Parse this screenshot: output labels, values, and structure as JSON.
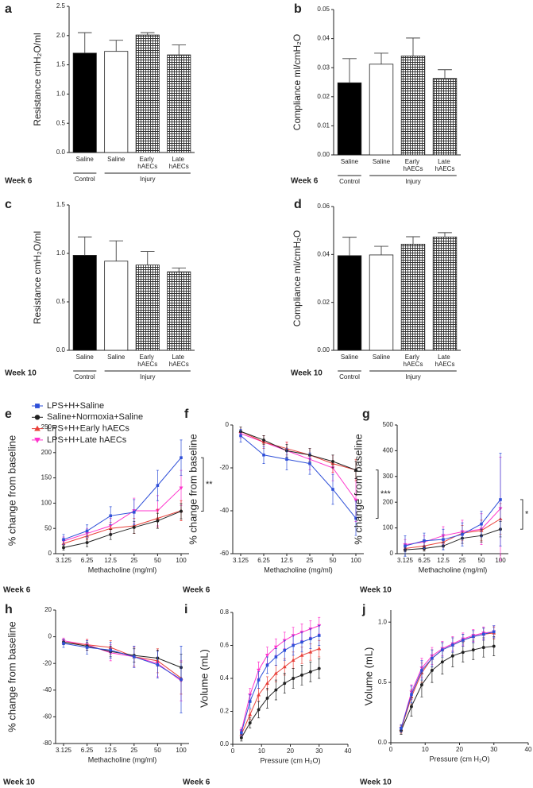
{
  "chart_data": [
    {
      "type": "bar",
      "label": "a",
      "note": "Week 6",
      "y_label": "Resistance cmH₂O/ml",
      "categories": [
        "Saline",
        "Saline",
        "Early hAECs",
        "Late hAECs"
      ],
      "group_labels": [
        "Control",
        "Injury"
      ],
      "values": [
        1.7,
        1.73,
        2.01,
        1.67
      ],
      "errors": [
        0.35,
        0.19,
        0.04,
        0.17
      ],
      "fills": [
        "#000000",
        "#ffffff",
        "crosshatch",
        "crosshatch"
      ],
      "ylim": [
        0,
        2.5
      ],
      "yticks": [
        {
          "value": 0,
          "label": "0.0"
        },
        0.5,
        {
          "value": 1,
          "label": "1.0"
        },
        1.5,
        {
          "value": 2,
          "label": "2.0"
        },
        2.5
      ]
    },
    {
      "type": "bar",
      "label": "b",
      "note": "Week 6",
      "y_label": "Compliance ml/cmH₂O",
      "categories": [
        "Saline",
        "Saline",
        "Early hAECs",
        "Late hAECs"
      ],
      "group_labels": [
        "Control",
        "Injury"
      ],
      "values": [
        0.0248,
        0.0312,
        0.034,
        0.0263
      ],
      "errors": [
        0.0083,
        0.0038,
        0.0062,
        0.003
      ],
      "fills": [
        "#000000",
        "#ffffff",
        "crosshatch",
        "crosshatch"
      ],
      "ylim": [
        0,
        0.05
      ],
      "yticks": [
        {
          "value": 0,
          "label": "0.00"
        },
        0.01,
        0.02,
        0.03,
        0.04,
        0.05
      ]
    },
    {
      "type": "bar",
      "label": "c",
      "note": "Week 10",
      "y_label": "Resistance cmH₂O/ml",
      "categories": [
        "Saline",
        "Saline",
        "Early hAECs",
        "Late hAECs"
      ],
      "group_labels": [
        "Control",
        "Injury"
      ],
      "values": [
        0.98,
        0.92,
        0.88,
        0.81
      ],
      "errors": [
        0.19,
        0.21,
        0.14,
        0.04
      ],
      "fills": [
        "#000000",
        "#ffffff",
        "crosshatch",
        "crosshatch"
      ],
      "ylim": [
        0,
        1.5
      ],
      "yticks": [
        {
          "value": 0,
          "label": "0.0"
        },
        0.5,
        {
          "value": 1,
          "label": "1.0"
        },
        1.5
      ]
    },
    {
      "type": "bar",
      "label": "d",
      "note": "Week 10",
      "y_label": "Compliance ml/cmH₂O",
      "categories": [
        "Saline",
        "Saline",
        "Early hAECs",
        "Late hAECs"
      ],
      "group_labels": [
        "Control",
        "Injury"
      ],
      "values": [
        0.0395,
        0.0398,
        0.0443,
        0.0473
      ],
      "errors": [
        0.0077,
        0.0036,
        0.0031,
        0.0018
      ],
      "fills": [
        "#000000",
        "#ffffff",
        "crosshatch",
        "crosshatch"
      ],
      "ylim": [
        0,
        0.06
      ],
      "yticks": [
        {
          "value": 0,
          "label": "0.00"
        },
        0.02,
        0.04,
        0.06
      ]
    },
    {
      "type": "line",
      "label": "e",
      "note": "Week 6",
      "y_label": "% change from baseline",
      "x_label": "Methacholine (mg/ml)",
      "categories": [
        "3.125",
        "6.25",
        "12.5",
        "25",
        "50",
        "100"
      ],
      "legend": true,
      "annotation": "**",
      "ylim": [
        0,
        250
      ],
      "yticks": [
        0,
        50,
        100,
        150,
        200,
        250
      ],
      "series": [
        {
          "name": "LPS+H+Late hAECs",
          "color": "#ff33cc",
          "marker": "triangle-down",
          "values": [
            25,
            40,
            55,
            85,
            85,
            130
          ],
          "errors": [
            8,
            10,
            15,
            25,
            30,
            35
          ]
        },
        {
          "name": "LPS+H+Early hAECs",
          "color": "#e8403a",
          "marker": "triangle",
          "values": [
            20,
            35,
            50,
            55,
            70,
            85
          ],
          "errors": [
            6,
            8,
            12,
            15,
            18,
            20
          ]
        },
        {
          "name": "Saline+Normoxia+Saline",
          "color": "#222222",
          "marker": "circle",
          "values": [
            12,
            22,
            38,
            52,
            65,
            84
          ],
          "errors": [
            5,
            8,
            10,
            12,
            15,
            15
          ]
        },
        {
          "name": "LPS+H+Saline",
          "color": "#2e4fd8",
          "marker": "square",
          "values": [
            28,
            45,
            75,
            82,
            135,
            190
          ],
          "errors": [
            10,
            12,
            18,
            25,
            30,
            35
          ]
        }
      ]
    },
    {
      "type": "line",
      "label": "f",
      "note": "Week 6",
      "y_label": "% change from baseline",
      "x_label": "Methacholine (mg/ml)",
      "categories": [
        "3.125",
        "6.25",
        "12.5",
        "25",
        "50",
        "100"
      ],
      "annotation": "***",
      "ylim": [
        -60,
        0
      ],
      "yticks": [
        -60,
        -40,
        -20,
        0
      ],
      "series": [
        {
          "color": "#ff33cc",
          "marker": "triangle-down",
          "values": [
            -4,
            -8,
            -12,
            -16,
            -20,
            -35
          ],
          "errors": [
            2,
            3,
            4,
            5,
            6,
            10
          ]
        },
        {
          "color": "#e8403a",
          "marker": "triangle",
          "values": [
            -3,
            -8,
            -11,
            -14,
            -18,
            -21
          ],
          "errors": [
            2,
            3,
            3,
            3,
            4,
            5
          ]
        },
        {
          "color": "#222222",
          "marker": "circle",
          "values": [
            -3,
            -7,
            -12,
            -14,
            -17,
            -21
          ],
          "errors": [
            2,
            2,
            3,
            3,
            3,
            4
          ]
        },
        {
          "color": "#2e4fd8",
          "marker": "square",
          "values": [
            -5,
            -14,
            -16,
            -18,
            -30,
            -43.5
          ],
          "errors": [
            3,
            4,
            5,
            5,
            7,
            8
          ]
        }
      ]
    },
    {
      "type": "line",
      "label": "g",
      "note": "Week 10",
      "y_label": "% change from baseline",
      "x_label": "Methacholine (mg/ml)",
      "categories": [
        "3.125",
        "6.25",
        "12.5",
        "25",
        "50",
        "100"
      ],
      "annotation": "*",
      "ylim": [
        0,
        500
      ],
      "yticks": [
        0,
        100,
        200,
        300,
        400,
        500
      ],
      "series": [
        {
          "color": "#ff33cc",
          "marker": "triangle-down",
          "values": [
            35,
            45,
            70,
            85,
            95,
            175
          ],
          "errors": [
            20,
            25,
            35,
            45,
            60,
            200
          ]
        },
        {
          "color": "#e8403a",
          "marker": "triangle",
          "values": [
            20,
            30,
            45,
            80,
            90,
            135
          ],
          "errors": [
            10,
            15,
            20,
            30,
            40,
            60
          ]
        },
        {
          "color": "#222222",
          "marker": "circle",
          "values": [
            15,
            20,
            30,
            60,
            70,
            95
          ],
          "errors": [
            8,
            10,
            15,
            20,
            25,
            30
          ]
        },
        {
          "color": "#2e4fd8",
          "marker": "square",
          "values": [
            30,
            50,
            55,
            75,
            115,
            210
          ],
          "errors": [
            40,
            30,
            40,
            45,
            50,
            180
          ]
        }
      ]
    },
    {
      "type": "line",
      "label": "h",
      "note": "Week 10",
      "y_label": "% change from baseline",
      "x_label": "Methacholine (mg/ml)",
      "categories": [
        "3.125",
        "6.25",
        "12.5",
        "25",
        "50",
        "100"
      ],
      "ylim": [
        -80,
        20
      ],
      "yticks": [
        -80,
        -60,
        -40,
        -20,
        0,
        20
      ],
      "series": [
        {
          "color": "#ff33cc",
          "marker": "triangle-down",
          "values": [
            -3,
            -6,
            -12,
            -15,
            -20,
            -33
          ],
          "errors": [
            2,
            4,
            6,
            8,
            10,
            15
          ]
        },
        {
          "color": "#e8403a",
          "marker": "triangle",
          "values": [
            -4,
            -6,
            -8,
            -15,
            -18,
            -31
          ],
          "errors": [
            2,
            4,
            5,
            7,
            9,
            12
          ]
        },
        {
          "color": "#222222",
          "marker": "circle",
          "values": [
            -4,
            -7,
            -11,
            -14,
            -16,
            -23
          ],
          "errors": [
            2,
            3,
            4,
            5,
            6,
            10
          ]
        },
        {
          "color": "#2e4fd8",
          "marker": "square",
          "values": [
            -5,
            -8,
            -10,
            -15,
            -21,
            -32
          ],
          "errors": [
            3,
            5,
            6,
            8,
            10,
            25
          ]
        }
      ]
    },
    {
      "type": "line",
      "label": "i",
      "note": "Week 6",
      "y_label": "Volume (mL)",
      "x_label": "Pressure (cm H₂O)",
      "x": [
        3,
        6,
        9,
        12,
        15,
        18,
        21,
        24,
        27,
        30
      ],
      "xlim": [
        0,
        40
      ],
      "xticks": [
        0,
        10,
        20,
        30,
        40
      ],
      "ylim": [
        0,
        0.8
      ],
      "yticks": [
        {
          "value": 0,
          "label": "0.0"
        },
        0.2,
        0.4,
        0.6,
        0.8
      ],
      "series": [
        {
          "color": "#ff33cc",
          "marker": "triangle-down",
          "values": [
            0.08,
            0.3,
            0.45,
            0.54,
            0.59,
            0.63,
            0.66,
            0.68,
            0.7,
            0.72
          ],
          "errors": [
            0.02,
            0.04,
            0.05,
            0.05,
            0.05,
            0.05,
            0.05,
            0.05,
            0.05,
            0.05
          ]
        },
        {
          "color": "#e8403a",
          "marker": "triangle",
          "values": [
            0.06,
            0.18,
            0.3,
            0.37,
            0.43,
            0.47,
            0.51,
            0.54,
            0.56,
            0.58
          ],
          "errors": [
            0.02,
            0.03,
            0.04,
            0.04,
            0.05,
            0.05,
            0.05,
            0.05,
            0.05,
            0.05
          ]
        },
        {
          "color": "#222222",
          "marker": "circle",
          "values": [
            0.04,
            0.13,
            0.21,
            0.28,
            0.33,
            0.37,
            0.4,
            0.42,
            0.44,
            0.46
          ],
          "errors": [
            0.02,
            0.03,
            0.05,
            0.06,
            0.06,
            0.06,
            0.06,
            0.06,
            0.06,
            0.06
          ]
        },
        {
          "color": "#2e4fd8",
          "marker": "square",
          "values": [
            0.07,
            0.26,
            0.39,
            0.48,
            0.53,
            0.57,
            0.6,
            0.62,
            0.64,
            0.66
          ],
          "errors": [
            0.02,
            0.04,
            0.05,
            0.05,
            0.05,
            0.06,
            0.06,
            0.06,
            0.06,
            0.06
          ]
        }
      ]
    },
    {
      "type": "line",
      "label": "j",
      "note": "Week 10",
      "y_label": "Volume (mL)",
      "x_label": "Pressure (cm H₂O)",
      "x": [
        3,
        6,
        9,
        12,
        15,
        18,
        21,
        24,
        27,
        30
      ],
      "xlim": [
        0,
        40
      ],
      "xticks": [
        0,
        10,
        20,
        30,
        40
      ],
      "ylim": [
        0,
        1.1
      ],
      "yticks": [
        {
          "value": 0,
          "label": "0.0"
        },
        0.5,
        {
          "value": 1,
          "label": "1.0"
        }
      ],
      "series": [
        {
          "color": "#ff33cc",
          "marker": "triangle-down",
          "values": [
            0.12,
            0.42,
            0.62,
            0.72,
            0.78,
            0.82,
            0.86,
            0.89,
            0.91,
            0.92
          ],
          "errors": [
            0.03,
            0.06,
            0.08,
            0.07,
            0.06,
            0.06,
            0.05,
            0.05,
            0.05,
            0.05
          ]
        },
        {
          "color": "#e8403a",
          "marker": "triangle",
          "values": [
            0.11,
            0.38,
            0.58,
            0.7,
            0.77,
            0.81,
            0.85,
            0.88,
            0.9,
            0.91
          ],
          "errors": [
            0.03,
            0.06,
            0.08,
            0.07,
            0.06,
            0.06,
            0.05,
            0.05,
            0.05,
            0.05
          ]
        },
        {
          "color": "#222222",
          "marker": "circle",
          "values": [
            0.1,
            0.3,
            0.48,
            0.6,
            0.67,
            0.72,
            0.75,
            0.77,
            0.79,
            0.8
          ],
          "errors": [
            0.03,
            0.08,
            0.1,
            0.1,
            0.1,
            0.09,
            0.08,
            0.08,
            0.08,
            0.08
          ]
        },
        {
          "color": "#2e4fd8",
          "marker": "square",
          "values": [
            0.12,
            0.4,
            0.6,
            0.7,
            0.77,
            0.81,
            0.85,
            0.88,
            0.9,
            0.92
          ],
          "errors": [
            0.03,
            0.07,
            0.08,
            0.07,
            0.06,
            0.06,
            0.05,
            0.05,
            0.05,
            0.05
          ]
        }
      ]
    }
  ]
}
